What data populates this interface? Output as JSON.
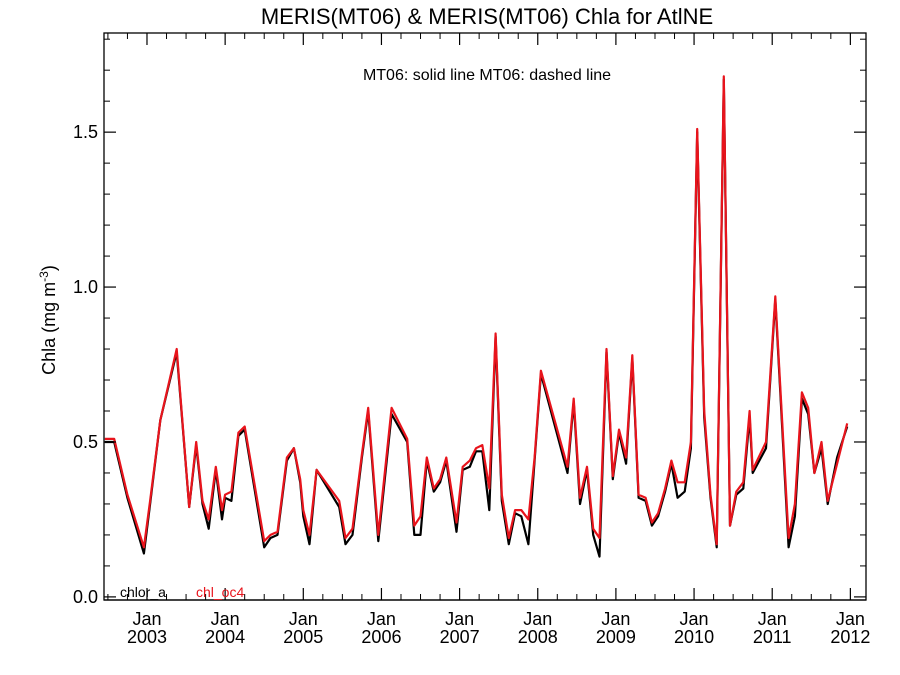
{
  "chart_data": {
    "type": "line",
    "title": "MERIS(MT06) & MERIS(MT06)  Chla for AtlNE",
    "annotation": "MT06: solid line   MT06: dashed line",
    "ylabel": "Chla (mg m",
    "ylabel_sup": "-3",
    "ylabel_close": ")",
    "xlim": [
      2002.45,
      2012.2
    ],
    "ylim": [
      -0.01,
      1.82
    ],
    "yticks": [
      0.0,
      0.5,
      1.0,
      1.5
    ],
    "ytick_labels": [
      "0.0",
      "0.5",
      "1.0",
      "1.5"
    ],
    "xticks": [
      {
        "x": 2003.0,
        "month": "Jan",
        "year": "2003"
      },
      {
        "x": 2004.0,
        "month": "Jan",
        "year": "2004"
      },
      {
        "x": 2005.0,
        "month": "Jan",
        "year": "2005"
      },
      {
        "x": 2006.0,
        "month": "Jan",
        "year": "2006"
      },
      {
        "x": 2007.0,
        "month": "Jan",
        "year": "2007"
      },
      {
        "x": 2008.0,
        "month": "Jan",
        "year": "2008"
      },
      {
        "x": 2009.0,
        "month": "Jan",
        "year": "2009"
      },
      {
        "x": 2010.0,
        "month": "Jan",
        "year": "2010"
      },
      {
        "x": 2011.0,
        "month": "Jan",
        "year": "2011"
      },
      {
        "x": 2012.0,
        "month": "Jan",
        "year": "2012"
      }
    ],
    "series": [
      {
        "name": "chlor_a",
        "color": "#000000",
        "points": [
          [
            2002.46,
            0.5
          ],
          [
            2002.58,
            0.5
          ],
          [
            2002.75,
            0.32
          ],
          [
            2002.96,
            0.14
          ],
          [
            2003.04,
            0.3
          ],
          [
            2003.17,
            0.57
          ],
          [
            2003.38,
            0.79
          ],
          [
            2003.54,
            0.29
          ],
          [
            2003.63,
            0.49
          ],
          [
            2003.71,
            0.3
          ],
          [
            2003.79,
            0.22
          ],
          [
            2003.88,
            0.41
          ],
          [
            2003.96,
            0.25
          ],
          [
            2004.0,
            0.32
          ],
          [
            2004.08,
            0.31
          ],
          [
            2004.17,
            0.52
          ],
          [
            2004.25,
            0.54
          ],
          [
            2004.5,
            0.16
          ],
          [
            2004.58,
            0.19
          ],
          [
            2004.67,
            0.2
          ],
          [
            2004.79,
            0.44
          ],
          [
            2004.88,
            0.48
          ],
          [
            2004.96,
            0.37
          ],
          [
            2005.0,
            0.26
          ],
          [
            2005.08,
            0.17
          ],
          [
            2005.17,
            0.41
          ],
          [
            2005.46,
            0.29
          ],
          [
            2005.54,
            0.17
          ],
          [
            2005.63,
            0.2
          ],
          [
            2005.75,
            0.45
          ],
          [
            2005.83,
            0.6
          ],
          [
            2005.96,
            0.18
          ],
          [
            2006.13,
            0.59
          ],
          [
            2006.33,
            0.5
          ],
          [
            2006.42,
            0.2
          ],
          [
            2006.5,
            0.2
          ],
          [
            2006.58,
            0.44
          ],
          [
            2006.67,
            0.34
          ],
          [
            2006.75,
            0.37
          ],
          [
            2006.83,
            0.44
          ],
          [
            2006.96,
            0.21
          ],
          [
            2007.04,
            0.41
          ],
          [
            2007.13,
            0.42
          ],
          [
            2007.21,
            0.47
          ],
          [
            2007.29,
            0.47
          ],
          [
            2007.38,
            0.28
          ],
          [
            2007.46,
            0.84
          ],
          [
            2007.54,
            0.31
          ],
          [
            2007.63,
            0.17
          ],
          [
            2007.71,
            0.27
          ],
          [
            2007.79,
            0.26
          ],
          [
            2007.88,
            0.17
          ],
          [
            2007.96,
            0.44
          ],
          [
            2008.04,
            0.72
          ],
          [
            2008.38,
            0.4
          ],
          [
            2008.46,
            0.63
          ],
          [
            2008.54,
            0.3
          ],
          [
            2008.63,
            0.41
          ],
          [
            2008.71,
            0.2
          ],
          [
            2008.79,
            0.13
          ],
          [
            2008.88,
            0.79
          ],
          [
            2008.96,
            0.38
          ],
          [
            2009.04,
            0.53
          ],
          [
            2009.13,
            0.43
          ],
          [
            2009.21,
            0.77
          ],
          [
            2009.29,
            0.32
          ],
          [
            2009.38,
            0.31
          ],
          [
            2009.46,
            0.23
          ],
          [
            2009.54,
            0.26
          ],
          [
            2009.63,
            0.34
          ],
          [
            2009.71,
            0.43
          ],
          [
            2009.79,
            0.32
          ],
          [
            2009.88,
            0.34
          ],
          [
            2009.96,
            0.48
          ],
          [
            2010.04,
            1.5
          ],
          [
            2010.13,
            0.58
          ],
          [
            2010.21,
            0.32
          ],
          [
            2010.29,
            0.16
          ],
          [
            2010.38,
            1.67
          ],
          [
            2010.46,
            0.23
          ],
          [
            2010.54,
            0.33
          ],
          [
            2010.63,
            0.35
          ],
          [
            2010.71,
            0.58
          ],
          [
            2010.75,
            0.4
          ],
          [
            2010.92,
            0.48
          ],
          [
            2011.04,
            0.96
          ],
          [
            2011.21,
            0.16
          ],
          [
            2011.29,
            0.26
          ],
          [
            2011.38,
            0.64
          ],
          [
            2011.46,
            0.59
          ],
          [
            2011.54,
            0.4
          ],
          [
            2011.63,
            0.48
          ],
          [
            2011.71,
            0.3
          ],
          [
            2011.83,
            0.45
          ],
          [
            2011.96,
            0.55
          ]
        ]
      },
      {
        "name": "chl_oc4",
        "color": "#e8141c",
        "points": [
          [
            2002.46,
            0.51
          ],
          [
            2002.58,
            0.51
          ],
          [
            2002.75,
            0.33
          ],
          [
            2002.96,
            0.16
          ],
          [
            2003.04,
            0.31
          ],
          [
            2003.17,
            0.57
          ],
          [
            2003.38,
            0.8
          ],
          [
            2003.54,
            0.29
          ],
          [
            2003.63,
            0.5
          ],
          [
            2003.71,
            0.31
          ],
          [
            2003.79,
            0.25
          ],
          [
            2003.88,
            0.42
          ],
          [
            2003.96,
            0.28
          ],
          [
            2004.0,
            0.33
          ],
          [
            2004.08,
            0.34
          ],
          [
            2004.17,
            0.53
          ],
          [
            2004.25,
            0.55
          ],
          [
            2004.5,
            0.18
          ],
          [
            2004.58,
            0.2
          ],
          [
            2004.67,
            0.21
          ],
          [
            2004.79,
            0.45
          ],
          [
            2004.88,
            0.48
          ],
          [
            2004.96,
            0.38
          ],
          [
            2005.0,
            0.28
          ],
          [
            2005.08,
            0.2
          ],
          [
            2005.17,
            0.41
          ],
          [
            2005.46,
            0.31
          ],
          [
            2005.54,
            0.19
          ],
          [
            2005.63,
            0.22
          ],
          [
            2005.75,
            0.46
          ],
          [
            2005.83,
            0.61
          ],
          [
            2005.96,
            0.2
          ],
          [
            2006.13,
            0.61
          ],
          [
            2006.33,
            0.51
          ],
          [
            2006.42,
            0.23
          ],
          [
            2006.5,
            0.26
          ],
          [
            2006.58,
            0.45
          ],
          [
            2006.67,
            0.35
          ],
          [
            2006.75,
            0.38
          ],
          [
            2006.83,
            0.45
          ],
          [
            2006.96,
            0.24
          ],
          [
            2007.04,
            0.42
          ],
          [
            2007.13,
            0.44
          ],
          [
            2007.21,
            0.48
          ],
          [
            2007.29,
            0.49
          ],
          [
            2007.38,
            0.35
          ],
          [
            2007.46,
            0.85
          ],
          [
            2007.54,
            0.33
          ],
          [
            2007.63,
            0.19
          ],
          [
            2007.71,
            0.28
          ],
          [
            2007.79,
            0.28
          ],
          [
            2007.88,
            0.25
          ],
          [
            2007.96,
            0.45
          ],
          [
            2008.04,
            0.73
          ],
          [
            2008.38,
            0.42
          ],
          [
            2008.46,
            0.64
          ],
          [
            2008.54,
            0.32
          ],
          [
            2008.63,
            0.42
          ],
          [
            2008.71,
            0.22
          ],
          [
            2008.79,
            0.19
          ],
          [
            2008.88,
            0.8
          ],
          [
            2008.96,
            0.39
          ],
          [
            2009.04,
            0.54
          ],
          [
            2009.13,
            0.45
          ],
          [
            2009.21,
            0.78
          ],
          [
            2009.29,
            0.33
          ],
          [
            2009.38,
            0.32
          ],
          [
            2009.46,
            0.24
          ],
          [
            2009.54,
            0.27
          ],
          [
            2009.63,
            0.35
          ],
          [
            2009.71,
            0.44
          ],
          [
            2009.79,
            0.37
          ],
          [
            2009.88,
            0.37
          ],
          [
            2009.96,
            0.5
          ],
          [
            2010.04,
            1.51
          ],
          [
            2010.13,
            0.6
          ],
          [
            2010.21,
            0.33
          ],
          [
            2010.29,
            0.17
          ],
          [
            2010.38,
            1.68
          ],
          [
            2010.46,
            0.23
          ],
          [
            2010.54,
            0.34
          ],
          [
            2010.63,
            0.37
          ],
          [
            2010.71,
            0.6
          ],
          [
            2010.75,
            0.41
          ],
          [
            2010.92,
            0.5
          ],
          [
            2011.04,
            0.97
          ],
          [
            2011.21,
            0.19
          ],
          [
            2011.29,
            0.3
          ],
          [
            2011.38,
            0.66
          ],
          [
            2011.46,
            0.61
          ],
          [
            2011.54,
            0.4
          ],
          [
            2011.63,
            0.5
          ],
          [
            2011.71,
            0.31
          ],
          [
            2011.83,
            0.43
          ],
          [
            2011.96,
            0.56
          ]
        ]
      }
    ],
    "legend": [
      {
        "label": "chlor_a",
        "color": "#000000"
      },
      {
        "label": "chl_oc4",
        "color": "#e8141c"
      }
    ],
    "grid": false,
    "legend_placement": "bottom-left"
  }
}
